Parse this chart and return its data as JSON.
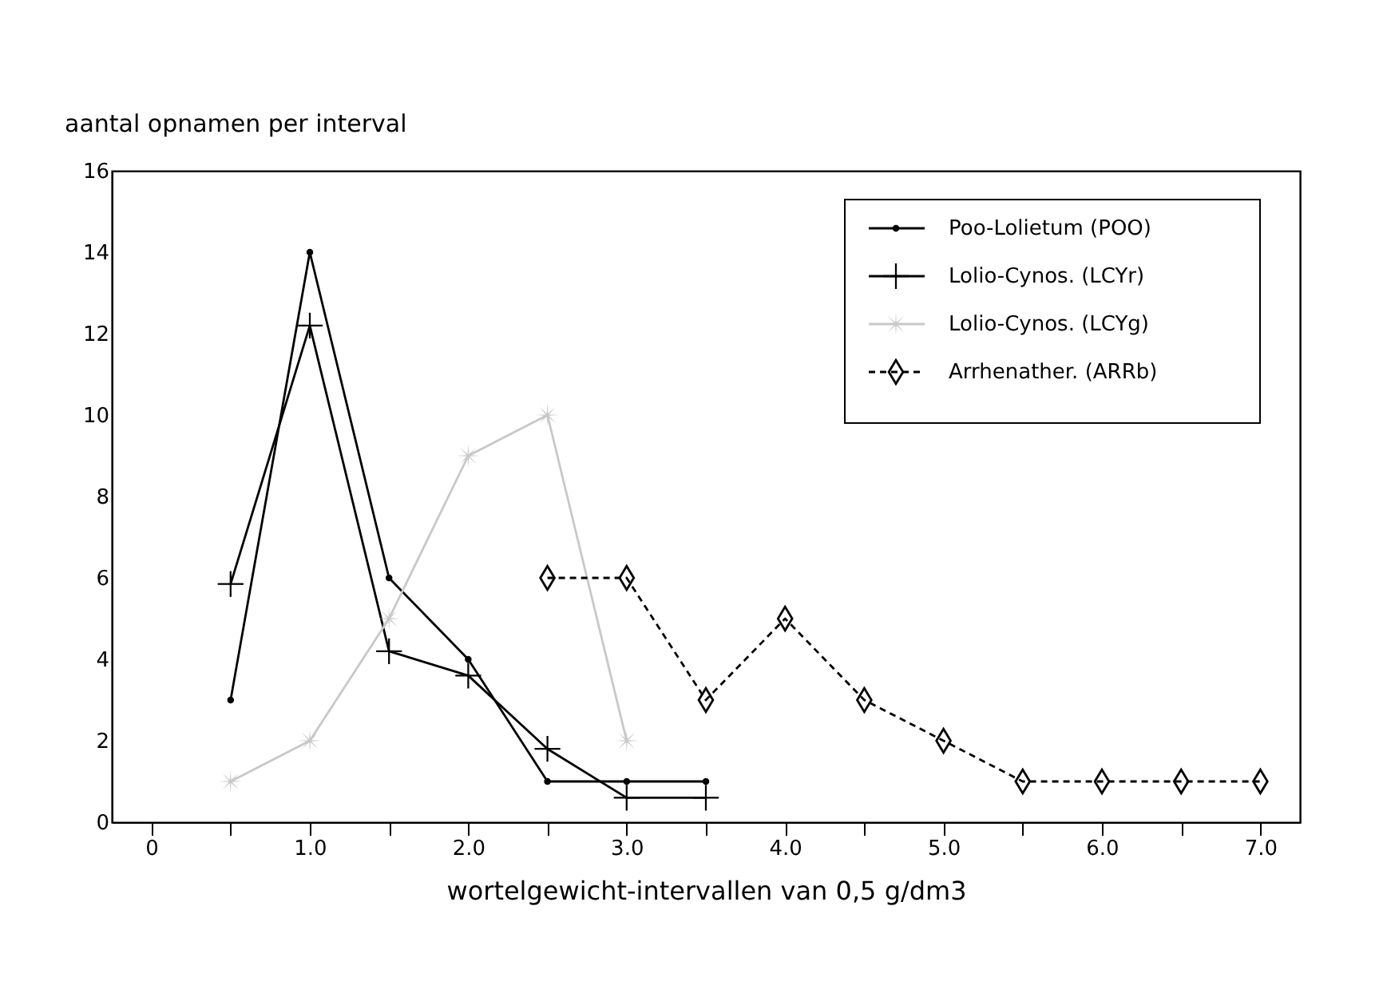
{
  "chart_data": {
    "type": "line",
    "ylabel": "aantal opnamen per interval",
    "xlabel": "wortelgewicht-intervallen van 0,5 g/dm3",
    "xlim": [
      -0.25,
      7.25
    ],
    "ylim": [
      0,
      16
    ],
    "xticks": [
      0,
      {
        "value": 0.5,
        "label": null
      },
      {
        "value": 1.0,
        "label": "1.0"
      },
      {
        "value": 1.5,
        "label": null
      },
      {
        "value": 2.0,
        "label": "2.0"
      },
      {
        "value": 2.5,
        "label": null
      },
      {
        "value": 3.0,
        "label": "3.0"
      },
      {
        "value": 3.5,
        "label": null
      },
      {
        "value": 4.0,
        "label": "4.0"
      },
      {
        "value": 4.5,
        "label": null
      },
      {
        "value": 5.0,
        "label": "5.0"
      },
      {
        "value": 5.5,
        "label": null
      },
      {
        "value": 6.0,
        "label": "6.0"
      },
      {
        "value": 6.5,
        "label": null
      },
      {
        "value": 7.0,
        "label": "7.0"
      }
    ],
    "yticks": [
      0,
      2,
      4,
      6,
      8,
      10,
      12,
      14,
      16
    ],
    "grid": false,
    "legend": "top right",
    "series": [
      {
        "name": "Poo-Lolietum (POO)",
        "color": "#000000",
        "marker": "circle",
        "line_style": "solid",
        "x": [
          0.5,
          1.0,
          1.5,
          2.0,
          2.5,
          3.0,
          3.5
        ],
        "values": [
          3,
          14,
          6,
          4,
          1,
          1,
          1
        ]
      },
      {
        "name": "Lolio-Cynos. (LCYr)",
        "color": "#000000",
        "marker": "cross",
        "line_style": "solid",
        "x": [
          0.5,
          1.0,
          1.5,
          2.0,
          2.5,
          3.0,
          3.5
        ],
        "values": [
          5.85,
          12.2,
          4.2,
          3.6,
          1.8,
          0.6,
          0.6
        ]
      },
      {
        "name": "Lolio-Cynos. (LCYg)",
        "color": "#c8c8c8",
        "marker": "star",
        "line_style": "solid",
        "x": [
          0.5,
          1.0,
          1.5,
          2.0,
          2.5,
          3.0
        ],
        "values": [
          1,
          2,
          5,
          9,
          10,
          2
        ]
      },
      {
        "name": "Arrhenather. (ARRb)",
        "color": "#000000",
        "marker": "diamond",
        "line_style": "dashed",
        "x": [
          2.5,
          3.0,
          3.5,
          4.0,
          4.5,
          5.0,
          5.5,
          6.0,
          6.5,
          7.0
        ],
        "values": [
          6,
          6,
          3,
          5,
          3,
          2,
          1,
          1,
          1,
          1
        ]
      }
    ]
  }
}
